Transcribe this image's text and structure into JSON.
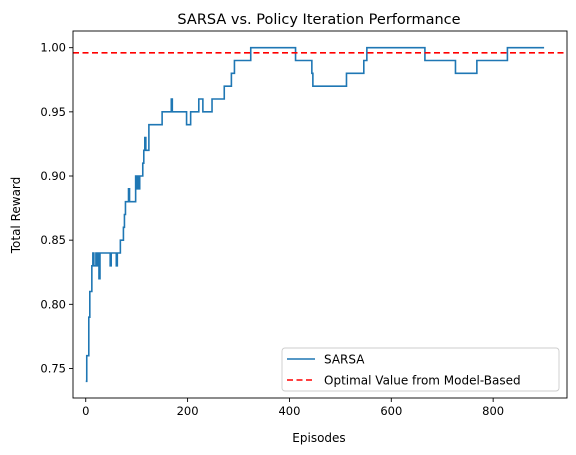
{
  "chart_data": {
    "type": "line",
    "title": "SARSA vs. Policy Iteration Performance",
    "xlabel": "Episodes",
    "ylabel": "Total Reward",
    "xlim": [
      -25,
      945
    ],
    "ylim": [
      0.727,
      1.013
    ],
    "xticks": [
      0,
      200,
      400,
      600,
      800
    ],
    "yticks": [
      0.75,
      0.8,
      0.85,
      0.9,
      0.95,
      1.0
    ],
    "grid": false,
    "legend_position": "lower-right",
    "series": [
      {
        "name": "SARSA",
        "color": "#1f77b4",
        "style": "step",
        "points": [
          [
            0,
            0.74
          ],
          [
            2,
            0.76
          ],
          [
            4,
            0.76
          ],
          [
            6,
            0.79
          ],
          [
            8,
            0.81
          ],
          [
            10,
            0.81
          ],
          [
            12,
            0.83
          ],
          [
            14,
            0.84
          ],
          [
            16,
            0.83
          ],
          [
            18,
            0.83
          ],
          [
            20,
            0.84
          ],
          [
            22,
            0.83
          ],
          [
            24,
            0.84
          ],
          [
            26,
            0.82
          ],
          [
            28,
            0.84
          ],
          [
            46,
            0.84
          ],
          [
            48,
            0.83
          ],
          [
            50,
            0.84
          ],
          [
            58,
            0.84
          ],
          [
            60,
            0.83
          ],
          [
            62,
            0.84
          ],
          [
            66,
            0.84
          ],
          [
            68,
            0.85
          ],
          [
            72,
            0.85
          ],
          [
            74,
            0.86
          ],
          [
            76,
            0.87
          ],
          [
            78,
            0.88
          ],
          [
            82,
            0.88
          ],
          [
            84,
            0.89
          ],
          [
            86,
            0.88
          ],
          [
            96,
            0.88
          ],
          [
            98,
            0.9
          ],
          [
            100,
            0.89
          ],
          [
            102,
            0.9
          ],
          [
            104,
            0.89
          ],
          [
            106,
            0.9
          ],
          [
            110,
            0.9
          ],
          [
            112,
            0.91
          ],
          [
            114,
            0.92
          ],
          [
            116,
            0.93
          ],
          [
            118,
            0.92
          ],
          [
            122,
            0.92
          ],
          [
            124,
            0.94
          ],
          [
            146,
            0.94
          ],
          [
            148,
            0.94
          ],
          [
            150,
            0.95
          ],
          [
            166,
            0.95
          ],
          [
            168,
            0.96
          ],
          [
            170,
            0.95
          ],
          [
            196,
            0.95
          ],
          [
            198,
            0.94
          ],
          [
            204,
            0.94
          ],
          [
            206,
            0.95
          ],
          [
            220,
            0.95
          ],
          [
            222,
            0.96
          ],
          [
            228,
            0.96
          ],
          [
            230,
            0.95
          ],
          [
            246,
            0.95
          ],
          [
            248,
            0.96
          ],
          [
            270,
            0.96
          ],
          [
            272,
            0.97
          ],
          [
            284,
            0.97
          ],
          [
            286,
            0.98
          ],
          [
            290,
            0.98
          ],
          [
            292,
            0.99
          ],
          [
            322,
            0.99
          ],
          [
            324,
            1.0
          ],
          [
            410,
            1.0
          ],
          [
            412,
            0.99
          ],
          [
            442,
            0.99
          ],
          [
            444,
            0.98
          ],
          [
            446,
            0.97
          ],
          [
            510,
            0.97
          ],
          [
            512,
            0.98
          ],
          [
            544,
            0.98
          ],
          [
            546,
            0.99
          ],
          [
            550,
            0.99
          ],
          [
            552,
            1.0
          ],
          [
            664,
            1.0
          ],
          [
            666,
            0.99
          ],
          [
            724,
            0.99
          ],
          [
            726,
            0.98
          ],
          [
            766,
            0.98
          ],
          [
            768,
            0.99
          ],
          [
            826,
            0.99
          ],
          [
            828,
            1.0
          ],
          [
            900,
            1.0
          ]
        ]
      },
      {
        "name": "Optimal Value from Model-Based",
        "color": "#ff0000",
        "style": "hline-dashed",
        "value": 0.996
      }
    ]
  }
}
